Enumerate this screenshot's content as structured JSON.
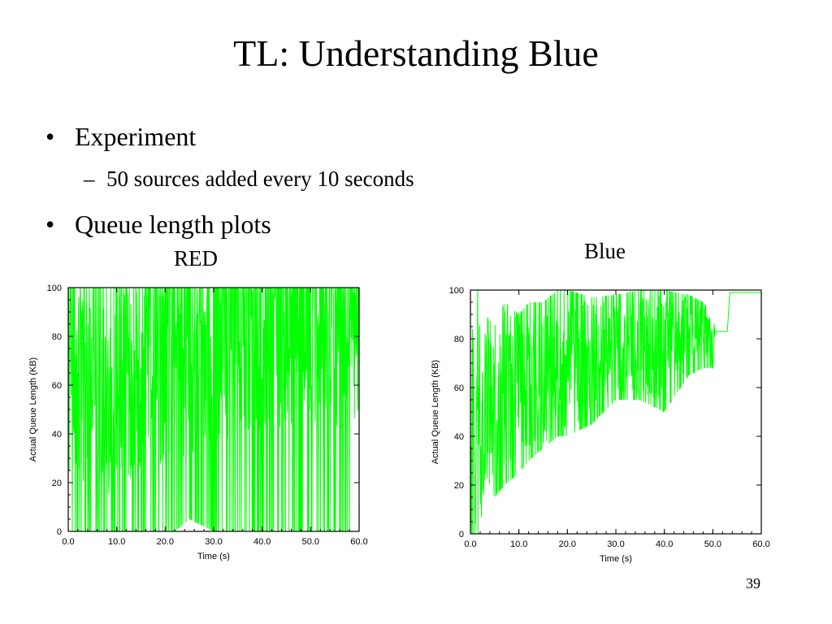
{
  "slide": {
    "title": "TL: Understanding Blue",
    "bullets": [
      {
        "text": "Experiment",
        "sub": [
          "50 sources added every 10 seconds"
        ]
      },
      {
        "text": "Queue length plots",
        "sub": []
      }
    ],
    "plot_labels": [
      "RED",
      "Blue"
    ],
    "page_number": "39"
  },
  "colors": {
    "series": "#00ff00",
    "axis": "#000000"
  },
  "chart_data": [
    {
      "type": "line",
      "caption": "RED",
      "xlabel": "Time (s)",
      "ylabel": "Actual Queue Length (KB)",
      "xlim": [
        0,
        60
      ],
      "ylim": [
        0,
        100
      ],
      "xticks": [
        "0.0",
        "10.0",
        "20.0",
        "30.0",
        "40.0",
        "50.0",
        "60.0"
      ],
      "yticks": [
        "0",
        "20",
        "40",
        "60",
        "80",
        "100"
      ],
      "grid": false,
      "series": [
        {
          "x": [
            0,
            5,
            10,
            15,
            20,
            22,
            25,
            30,
            35,
            40,
            45,
            50,
            55,
            60
          ],
          "y": [
            60,
            55,
            62,
            70,
            72,
            70,
            75,
            80,
            85,
            85,
            88,
            90,
            88,
            90
          ],
          "y_min": [
            0,
            0,
            0,
            0,
            0,
            0,
            5,
            0,
            0,
            0,
            0,
            0,
            0,
            0
          ],
          "y_max": [
            100,
            100,
            100,
            100,
            100,
            100,
            100,
            100,
            100,
            100,
            100,
            100,
            100,
            100
          ]
        }
      ]
    },
    {
      "type": "line",
      "caption": "Blue",
      "xlabel": "Time (s)",
      "ylabel": "Actual Queue Length (KB)",
      "xlim": [
        0,
        60
      ],
      "ylim": [
        0,
        100
      ],
      "xticks": [
        "0.0",
        "10.0",
        "20.0",
        "30.0",
        "40.0",
        "50.0",
        "60.0"
      ],
      "yticks": [
        "0",
        "20",
        "40",
        "60",
        "80",
        "100"
      ],
      "grid": false,
      "series": [
        {
          "x": [
            0,
            0.5,
            1,
            1.5,
            2,
            3,
            5,
            7,
            10,
            12,
            15,
            18,
            20,
            25,
            30,
            35,
            40,
            45,
            48,
            50,
            50.5,
            53,
            53.5,
            60
          ],
          "y": [
            0,
            100,
            0,
            100,
            30,
            55,
            45,
            60,
            65,
            60,
            62,
            70,
            70,
            72,
            78,
            76,
            78,
            83,
            85,
            75,
            83,
            83,
            99,
            99
          ],
          "y_min": [
            0,
            0,
            0,
            0,
            0,
            25,
            15,
            20,
            25,
            30,
            35,
            40,
            40,
            45,
            55,
            55,
            50,
            65,
            68,
            68,
            83,
            83,
            99,
            99
          ],
          "y_max": [
            0,
            100,
            0,
            100,
            80,
            90,
            85,
            95,
            90,
            95,
            95,
            100,
            100,
            97,
            98,
            100,
            100,
            98,
            95,
            90,
            83,
            83,
            99,
            99
          ]
        }
      ]
    }
  ]
}
